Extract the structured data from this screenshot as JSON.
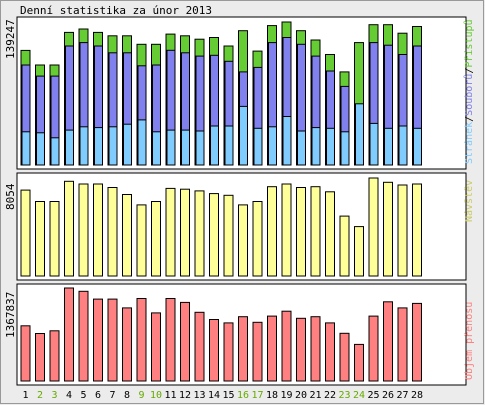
{
  "title": "Denní statistika za únor 2013",
  "colors": {
    "background": "#ececec",
    "panel": "#ffffff",
    "border": "#000000",
    "green": "#66cc33",
    "blue": "#8080ee",
    "cyan": "#80ccff",
    "yellow": "#ffff99",
    "red": "#ff8080",
    "weekend": "#66aa00",
    "text": "#000000"
  },
  "chart_data": [
    {
      "type": "bar",
      "title": "Denní statistika za únor 2013",
      "ymax_label": "139247",
      "right_label_parts": [
        "Stránek",
        "/",
        "Souborů",
        "/",
        "Přístupů"
      ],
      "categories": [
        "1",
        "2",
        "3",
        "4",
        "5",
        "6",
        "7",
        "8",
        "9",
        "10",
        "11",
        "12",
        "13",
        "14",
        "15",
        "16",
        "17",
        "18",
        "19",
        "20",
        "21",
        "22",
        "23",
        "24",
        "25",
        "26",
        "27",
        "28"
      ],
      "weekend": [
        false,
        true,
        true,
        false,
        false,
        false,
        false,
        false,
        true,
        true,
        false,
        false,
        false,
        false,
        false,
        true,
        true,
        false,
        false,
        false,
        false,
        false,
        true,
        true,
        false,
        false,
        false,
        false
      ],
      "ylim": [
        0,
        139247
      ],
      "series": [
        {
          "name": "Přístupů",
          "color": "green",
          "values": [
            111600,
            97400,
            97400,
            129100,
            132400,
            129100,
            125800,
            125800,
            117500,
            117500,
            127500,
            125800,
            122500,
            124200,
            115900,
            130800,
            110900,
            135700,
            139247,
            130800,
            121700,
            107600,
            90700,
            119200,
            136600,
            136600,
            128300,
            134900
          ]
        },
        {
          "name": "Souborů",
          "color": "blue",
          "values": [
            97400,
            86600,
            86600,
            115900,
            119200,
            115900,
            109300,
            109300,
            96600,
            97400,
            111700,
            109300,
            106000,
            106800,
            101000,
            90700,
            95000,
            119200,
            124200,
            117500,
            106000,
            91500,
            76500,
            48700,
            119200,
            116700,
            107600,
            115900
          ]
        },
        {
          "name": "Stránek",
          "color": "cyan",
          "values": [
            32300,
            31400,
            26500,
            34000,
            37200,
            36400,
            37200,
            39700,
            43900,
            32300,
            34000,
            34000,
            33100,
            38000,
            38000,
            57100,
            35700,
            37200,
            47200,
            33100,
            36400,
            35700,
            32300,
            59600,
            40500,
            35700,
            38000,
            35700
          ]
        }
      ]
    },
    {
      "type": "bar",
      "ymax_label": "8054",
      "right_label": "Návštěv",
      "ylim": [
        0,
        8054
      ],
      "series": [
        {
          "name": "Návštěv",
          "color": "yellow",
          "values": [
            7060,
            6120,
            6120,
            7780,
            7560,
            7560,
            7270,
            6700,
            5840,
            6120,
            7200,
            7130,
            6990,
            6770,
            6630,
            5840,
            6120,
            7340,
            7560,
            7270,
            7340,
            6920,
            4920,
            4060,
            8054,
            7700,
            7480,
            7560
          ]
        }
      ]
    },
    {
      "type": "bar",
      "ymax_label": "1367837",
      "right_label": "Objem přenosu",
      "ylim": [
        0,
        1367837
      ],
      "series": [
        {
          "name": "Objem přenosu",
          "color": "red",
          "values": [
            812000,
            698000,
            738000,
            1367837,
            1319000,
            1205000,
            1205000,
            1075000,
            1213000,
            1002000,
            1213000,
            1156000,
            1010000,
            904000,
            855000,
            945000,
            863000,
            954000,
            1026000,
            922000,
            945000,
            855000,
            701000,
            539000,
            954000,
            1165000,
            1075000,
            1141000
          ]
        }
      ]
    }
  ]
}
